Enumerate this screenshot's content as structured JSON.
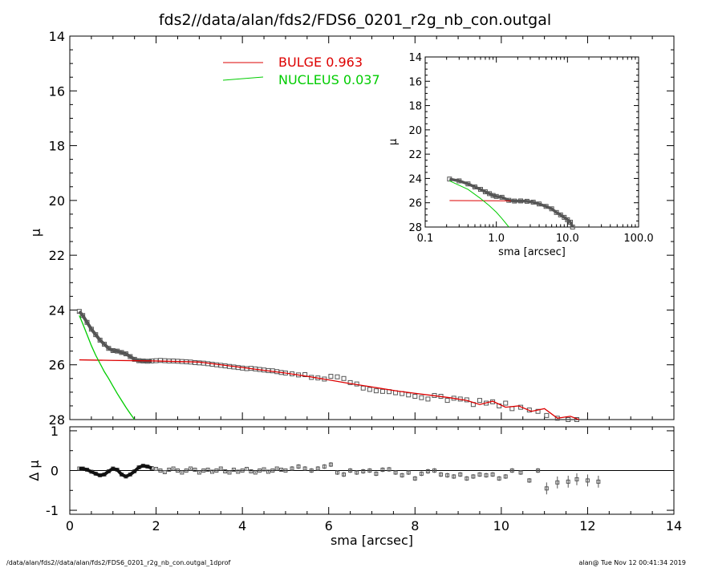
{
  "chart_data": {
    "title": "fds2//data/alan/fds2/FDS6_0201_r2g_nb_con.outgal",
    "footer_left": "/data/alan/fds2//data/alan/fds2/FDS6_0201_r2g_nb_con.outgal_1dprof",
    "footer_right": "alan@  Tue Nov 12 00:41:34 2019",
    "colors": {
      "data": "#555555",
      "bulge": "#dd0000",
      "nucleus": "#00cc00",
      "axis": "#000000"
    },
    "main": {
      "type": "line",
      "ylabel": "μ",
      "xlim": [
        0,
        14
      ],
      "ylim": [
        28,
        14
      ],
      "yticks": [
        "14",
        "16",
        "18",
        "20",
        "22",
        "24",
        "26",
        "28"
      ],
      "legend": [
        {
          "name": "BULGE",
          "value": "0.963",
          "color": "#dd0000"
        },
        {
          "name": "NUCLEUS",
          "value": "0.037",
          "color": "#00cc00"
        }
      ],
      "data_points": {
        "x": [
          0.22,
          0.3,
          0.4,
          0.5,
          0.6,
          0.7,
          0.8,
          0.9,
          1.0,
          1.1,
          1.2,
          1.3,
          1.4,
          1.5,
          1.6,
          1.7,
          1.8,
          1.9,
          2.0,
          2.1,
          2.2,
          2.3,
          2.4,
          2.5,
          2.6,
          2.7,
          2.8,
          2.9,
          3.0,
          3.1,
          3.2,
          3.3,
          3.4,
          3.5,
          3.6,
          3.7,
          3.8,
          3.9,
          4.0,
          4.1,
          4.2,
          4.3,
          4.4,
          4.5,
          4.6,
          4.7,
          4.8,
          4.9,
          5.0,
          5.15,
          5.3,
          5.45,
          5.6,
          5.75,
          5.9,
          6.05,
          6.2,
          6.35,
          6.5,
          6.65,
          6.8,
          6.95,
          7.1,
          7.25,
          7.4,
          7.55,
          7.7,
          7.85,
          8.0,
          8.15,
          8.3,
          8.45,
          8.6,
          8.75,
          8.9,
          9.05,
          9.2,
          9.35,
          9.5,
          9.65,
          9.8,
          9.95,
          10.1,
          10.25,
          10.45,
          10.65,
          10.85,
          11.05,
          11.3,
          11.55,
          11.75
        ],
        "y": [
          24.05,
          24.2,
          24.45,
          24.7,
          24.9,
          25.1,
          25.25,
          25.4,
          25.48,
          25.5,
          25.55,
          25.6,
          25.7,
          25.8,
          25.85,
          25.86,
          25.87,
          25.86,
          25.85,
          25.84,
          25.85,
          25.86,
          25.86,
          25.87,
          25.88,
          25.89,
          25.9,
          25.92,
          25.93,
          25.94,
          25.96,
          25.98,
          26.0,
          26.02,
          26.04,
          26.06,
          26.08,
          26.1,
          26.12,
          26.14,
          26.13,
          26.15,
          26.17,
          26.19,
          26.21,
          26.22,
          26.25,
          26.28,
          26.3,
          26.33,
          26.37,
          26.36,
          26.46,
          26.48,
          26.52,
          26.42,
          26.44,
          26.5,
          26.65,
          26.7,
          26.85,
          26.9,
          26.95,
          26.97,
          26.98,
          27.02,
          27.05,
          27.1,
          27.15,
          27.2,
          27.25,
          27.12,
          27.15,
          27.3,
          27.22,
          27.25,
          27.28,
          27.45,
          27.3,
          27.4,
          27.35,
          27.5,
          27.4,
          27.6,
          27.55,
          27.65,
          27.7,
          27.85,
          27.95,
          28.0,
          28.0
        ]
      },
      "bulge": {
        "x": [
          0.22,
          1.0,
          2.0,
          3.0,
          4.0,
          5.0,
          5.5,
          6.0,
          6.4,
          6.8,
          7.2,
          7.6,
          8.0,
          8.4,
          8.8,
          9.2,
          9.5,
          9.8,
          10.1,
          10.4,
          10.7,
          11.0,
          11.3,
          11.6,
          11.8
        ],
        "y": [
          25.82,
          25.84,
          25.86,
          25.9,
          26.1,
          26.3,
          26.42,
          26.55,
          26.66,
          26.76,
          26.86,
          26.96,
          27.04,
          27.12,
          27.2,
          27.3,
          27.45,
          27.33,
          27.55,
          27.5,
          27.7,
          27.6,
          27.95,
          27.88,
          28.0
        ]
      },
      "nucleus": {
        "x": [
          0.22,
          0.3,
          0.4,
          0.5,
          0.6,
          0.7,
          0.8,
          0.9,
          1.0,
          1.1,
          1.2,
          1.3,
          1.4,
          1.5
        ],
        "y": [
          24.2,
          24.5,
          24.9,
          25.3,
          25.65,
          25.95,
          26.25,
          26.5,
          26.78,
          27.05,
          27.3,
          27.55,
          27.78,
          28.0
        ]
      }
    },
    "inset": {
      "type": "line",
      "xlabel": "sma [arcsec]",
      "ylabel": "μ",
      "xscale": "log",
      "xlim": [
        0.1,
        100
      ],
      "ylim": [
        28,
        14
      ],
      "xticks": [
        "0.1",
        "1.0",
        "10.0",
        "100.0"
      ],
      "yticks": [
        "14",
        "16",
        "18",
        "20",
        "22",
        "24",
        "26",
        "28"
      ],
      "data_points": {
        "x": [
          0.22,
          0.3,
          0.4,
          0.5,
          0.6,
          0.7,
          0.8,
          0.9,
          1.0,
          1.2,
          1.5,
          1.8,
          2.2,
          2.7,
          3.3,
          4.0,
          5.0,
          6.0,
          7.0,
          8.0,
          9.0,
          10.0,
          11.0,
          11.8
        ],
        "y": [
          24.05,
          24.2,
          24.45,
          24.7,
          24.9,
          25.1,
          25.25,
          25.4,
          25.48,
          25.55,
          25.8,
          25.86,
          25.85,
          25.88,
          25.95,
          26.1,
          26.3,
          26.5,
          26.8,
          27.0,
          27.2,
          27.4,
          27.6,
          28.0
        ]
      },
      "bulge": {
        "x": [
          0.22,
          1.0,
          1.6
        ],
        "y": [
          25.82,
          25.84,
          25.85
        ]
      },
      "nucleus": {
        "x": [
          0.22,
          0.4,
          0.6,
          0.8,
          1.0,
          1.2,
          1.5
        ],
        "y": [
          24.2,
          24.9,
          25.65,
          26.25,
          26.78,
          27.3,
          28.0
        ]
      }
    },
    "residual": {
      "type": "scatter",
      "xlabel": "sma [arcsec]",
      "ylabel": "Δ μ",
      "xlim": [
        0,
        14
      ],
      "ylim": [
        -1.1,
        1.1
      ],
      "xticks": [
        "0",
        "2",
        "4",
        "6",
        "8",
        "10",
        "12",
        "14"
      ],
      "yticks": [
        "1",
        "0",
        "-1"
      ],
      "x": [
        0.22,
        0.3,
        0.4,
        0.5,
        0.6,
        0.7,
        0.8,
        0.9,
        1.0,
        1.1,
        1.2,
        1.3,
        1.4,
        1.5,
        1.6,
        1.7,
        1.8,
        1.9,
        2.0,
        2.1,
        2.2,
        2.3,
        2.4,
        2.5,
        2.6,
        2.7,
        2.8,
        2.9,
        3.0,
        3.1,
        3.2,
        3.3,
        3.4,
        3.5,
        3.6,
        3.7,
        3.8,
        3.9,
        4.0,
        4.1,
        4.2,
        4.3,
        4.4,
        4.5,
        4.6,
        4.7,
        4.8,
        4.9,
        5.0,
        5.15,
        5.3,
        5.45,
        5.6,
        5.75,
        5.9,
        6.05,
        6.2,
        6.35,
        6.5,
        6.65,
        6.8,
        6.95,
        7.1,
        7.25,
        7.4,
        7.55,
        7.7,
        7.85,
        8.0,
        8.15,
        8.3,
        8.45,
        8.6,
        8.75,
        8.9,
        9.05,
        9.2,
        9.35,
        9.5,
        9.65,
        9.8,
        9.95,
        10.1,
        10.25,
        10.45,
        10.65,
        10.85,
        11.05,
        11.3,
        11.55,
        11.75,
        12.0,
        12.25
      ],
      "y": [
        0.05,
        0.05,
        0.02,
        -0.03,
        -0.08,
        -0.12,
        -0.1,
        -0.02,
        0.05,
        0.02,
        -0.1,
        -0.15,
        -0.1,
        -0.02,
        0.08,
        0.12,
        0.1,
        0.06,
        0.04,
        0.0,
        -0.04,
        0.02,
        0.05,
        0.0,
        -0.05,
        0.0,
        0.05,
        0.02,
        -0.05,
        0.0,
        0.02,
        -0.03,
        0.0,
        0.05,
        -0.02,
        -0.05,
        0.02,
        -0.03,
        0.0,
        0.04,
        -0.02,
        -0.05,
        0.0,
        0.03,
        -0.03,
        0.0,
        0.05,
        0.02,
        0.0,
        0.05,
        0.1,
        0.05,
        0.0,
        0.05,
        0.1,
        0.15,
        -0.05,
        -0.1,
        0.0,
        -0.05,
        -0.02,
        0.0,
        -0.08,
        0.02,
        0.03,
        -0.05,
        -0.12,
        -0.05,
        -0.2,
        -0.08,
        -0.02,
        0.0,
        -0.1,
        -0.12,
        -0.15,
        -0.1,
        -0.2,
        -0.15,
        -0.1,
        -0.12,
        -0.1,
        -0.2,
        -0.15,
        0.0,
        -0.05,
        -0.25,
        0.0,
        -0.45,
        -0.3,
        -0.28,
        -0.22,
        -0.25,
        -0.28
      ]
    }
  }
}
